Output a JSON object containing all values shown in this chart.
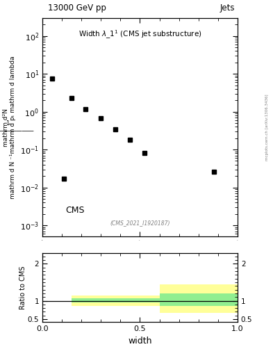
{
  "title_top": "13000 GeV pp",
  "title_right": "Jets",
  "main_title": "Width $\\lambda\\_1^1$ (CMS jet substructure)",
  "cms_label": "CMS",
  "inspire_label": "(CMS_2021_I1920187)",
  "xlabel": "width",
  "ylabel_main_lines": [
    "mathrm d²N",
    "mathrm d N ⁻¹mathrm d pₜ mathrm d lambda"
  ],
  "ylabel_ratio": "Ratio to CMS",
  "right_label": "mcplots.cern.ch [arXiv:1306.3436]",
  "data_x": [
    0.05,
    0.15,
    0.22,
    0.3,
    0.375,
    0.45,
    0.525,
    0.11,
    0.88
  ],
  "data_y": [
    7.5,
    2.3,
    1.15,
    0.68,
    0.34,
    0.18,
    0.082,
    0.017,
    0.026
  ],
  "ylim_main_log": [
    0.0005,
    300
  ],
  "xlim": [
    0,
    1.0
  ],
  "ratio_xlim": [
    0,
    1.0
  ],
  "ratio_ylim": [
    0.42,
    2.3
  ],
  "green_color": "#90EE90",
  "yellow_color": "#FFFF99",
  "marker_color": "black",
  "marker_size": 4,
  "ratio_line_y": 1.0,
  "band1_xstart": 0.15,
  "band1_xend": 0.6,
  "band1_green_lo": 0.945,
  "band1_green_hi": 1.07,
  "band1_yellow_lo": 0.865,
  "band1_yellow_hi": 1.135,
  "band2_xstart": 0.6,
  "band2_xend": 1.0,
  "band2_green_lo": 0.855,
  "band2_green_hi": 1.2,
  "band2_yellow_lo": 0.67,
  "band2_yellow_hi": 1.45
}
